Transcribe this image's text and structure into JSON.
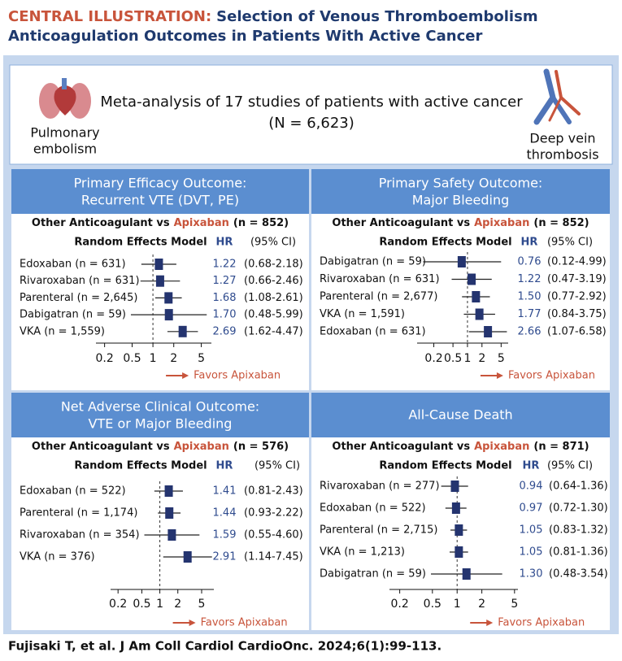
{
  "header": {
    "label": "CENTRAL ILLUSTRATION:",
    "title_lines": [
      "Selection of Venous Thromboembolism",
      "Anticoagulation Outcomes in Patients With Active Cancer"
    ]
  },
  "overview": {
    "text": "Meta-analysis of 17 studies of patients with active cancer",
    "total": "(N = 6,623)",
    "left_icon_label": [
      "Pulmonary",
      "embolism"
    ],
    "right_icon_label": [
      "Deep vein",
      "thrombosis"
    ]
  },
  "chart_data": [
    {
      "type": "forest",
      "title": [
        "Primary Efficacy Outcome:",
        "Recurrent VTE (DVT, PE)"
      ],
      "comparison": {
        "prefix": "Other Anticoagulant vs",
        "drug": "Apixaban",
        "n": "(n = 852)"
      },
      "columns": {
        "model": "Random Effects Model",
        "hr": "HR",
        "ci": "(95% CI)"
      },
      "categories": [
        "Edoxaban (n = 631)",
        "Rivaroxaban (n = 631)",
        "Parenteral (n = 2,645)",
        "Dabigatran (n = 59)",
        "VKA (n = 1,559)"
      ],
      "values": [
        1.22,
        1.27,
        1.68,
        1.7,
        2.69
      ],
      "value_labels": [
        "1.22",
        "1.27",
        "1.68",
        "1.70",
        "2.69"
      ],
      "ci_lower": [
        0.68,
        0.66,
        1.08,
        0.48,
        1.62
      ],
      "ci_upper": [
        2.18,
        2.46,
        2.61,
        5.99,
        4.47
      ],
      "ci_labels": [
        "(0.68-2.18)",
        "(0.66-2.46)",
        "(1.08-2.61)",
        "(0.48-5.99)",
        "(1.62-4.47)"
      ],
      "xscale": "log",
      "xlim": [
        0.15,
        7
      ],
      "xticks": [
        0.2,
        0.5,
        1,
        2,
        5
      ],
      "ref_line": 1,
      "xlabel": "Favors Apixaban",
      "color": "#24346f"
    },
    {
      "type": "forest",
      "title": [
        "Primary Safety Outcome:",
        "Major Bleeding"
      ],
      "comparison": {
        "prefix": "Other Anticoagulant vs",
        "drug": "Apixaban",
        "n": "(n = 852)"
      },
      "columns": {
        "model": "Random Effects Model",
        "hr": "HR",
        "ci": "(95% CI)"
      },
      "categories": [
        "Dabigatran (n = 59)",
        "Rivaroxaban (n = 631)",
        "Parenteral (n = 2,677)",
        "VKA (n = 1,591)",
        "Edoxaban (n = 631)"
      ],
      "values": [
        0.76,
        1.22,
        1.5,
        1.77,
        2.66
      ],
      "value_labels": [
        "0.76",
        "1.22",
        "1.50",
        "1.77",
        "2.66"
      ],
      "ci_lower": [
        0.12,
        0.47,
        0.77,
        0.84,
        1.07
      ],
      "ci_upper": [
        4.99,
        3.19,
        2.92,
        3.75,
        6.58
      ],
      "ci_labels": [
        "(0.12-4.99)",
        "(0.47-3.19)",
        "(0.77-2.92)",
        "(0.84-3.75)",
        "(1.07-6.58)"
      ],
      "xscale": "log",
      "xlim": [
        0.09,
        7
      ],
      "xticks": [
        0.2,
        0.5,
        1,
        2,
        5
      ],
      "ref_line": 1,
      "xlabel": "Favors Apixaban",
      "color": "#24346f"
    },
    {
      "type": "forest",
      "title": [
        "Net Adverse Clinical Outcome:",
        "VTE or Major Bleeding"
      ],
      "comparison": {
        "prefix": "Other Anticoagulant vs",
        "drug": "Apixaban",
        "n": "(n = 576)"
      },
      "columns": {
        "model": "Random Effects Model",
        "hr": "HR",
        "ci": "(95% CI)"
      },
      "categories": [
        "Edoxaban (n = 522)",
        "Parenteral (n = 1,174)",
        "Rivaroxaban (n = 354)",
        "VKA (n = 376)"
      ],
      "values": [
        1.41,
        1.44,
        1.59,
        2.91
      ],
      "value_labels": [
        "1.41",
        "1.44",
        "1.59",
        "2.91"
      ],
      "ci_lower": [
        0.81,
        0.93,
        0.55,
        1.14
      ],
      "ci_upper": [
        2.43,
        2.22,
        4.6,
        7.45
      ],
      "ci_labels": [
        "(0.81-2.43)",
        "(0.93-2.22)",
        "(0.55-4.60)",
        "(1.14-7.45)"
      ],
      "xscale": "log",
      "xlim": [
        0.15,
        8
      ],
      "xticks": [
        0.2,
        0.5,
        1,
        2,
        5
      ],
      "ref_line": 1,
      "xlabel": "Favors Apixaban",
      "color": "#24346f"
    },
    {
      "type": "forest",
      "title": [
        "All-Cause Death"
      ],
      "comparison": {
        "prefix": "Other Anticoagulant vs",
        "drug": "Apixaban",
        "n": "(n = 871)"
      },
      "columns": {
        "model": "Random Effects Model",
        "hr": "HR",
        "ci": "(95% CI)"
      },
      "categories": [
        "Rivaroxaban (n = 277)",
        "Edoxaban (n = 522)",
        "Parenteral (n = 2,715)",
        "VKA (n = 1,213)",
        "Dabigatran (n = 59)"
      ],
      "values": [
        0.94,
        0.97,
        1.05,
        1.05,
        1.3
      ],
      "value_labels": [
        "0.94",
        "0.97",
        "1.05",
        "1.05",
        "1.30"
      ],
      "ci_lower": [
        0.64,
        0.72,
        0.83,
        0.81,
        0.48
      ],
      "ci_upper": [
        1.36,
        1.3,
        1.32,
        1.36,
        3.54
      ],
      "ci_labels": [
        "(0.64-1.36)",
        "(0.72-1.30)",
        "(0.83-1.32)",
        "(0.81-1.36)",
        "(0.48-3.54)"
      ],
      "xscale": "log",
      "xlim": [
        0.15,
        5.5
      ],
      "xticks": [
        0.2,
        0.5,
        1,
        2,
        5
      ],
      "ref_line": 1,
      "xlabel": "Favors Apixaban",
      "color": "#24346f"
    }
  ],
  "footer": "Fujisaki T, et al. J Am Coll Cardiol CardioOnc. 2024;6(1):99-113."
}
